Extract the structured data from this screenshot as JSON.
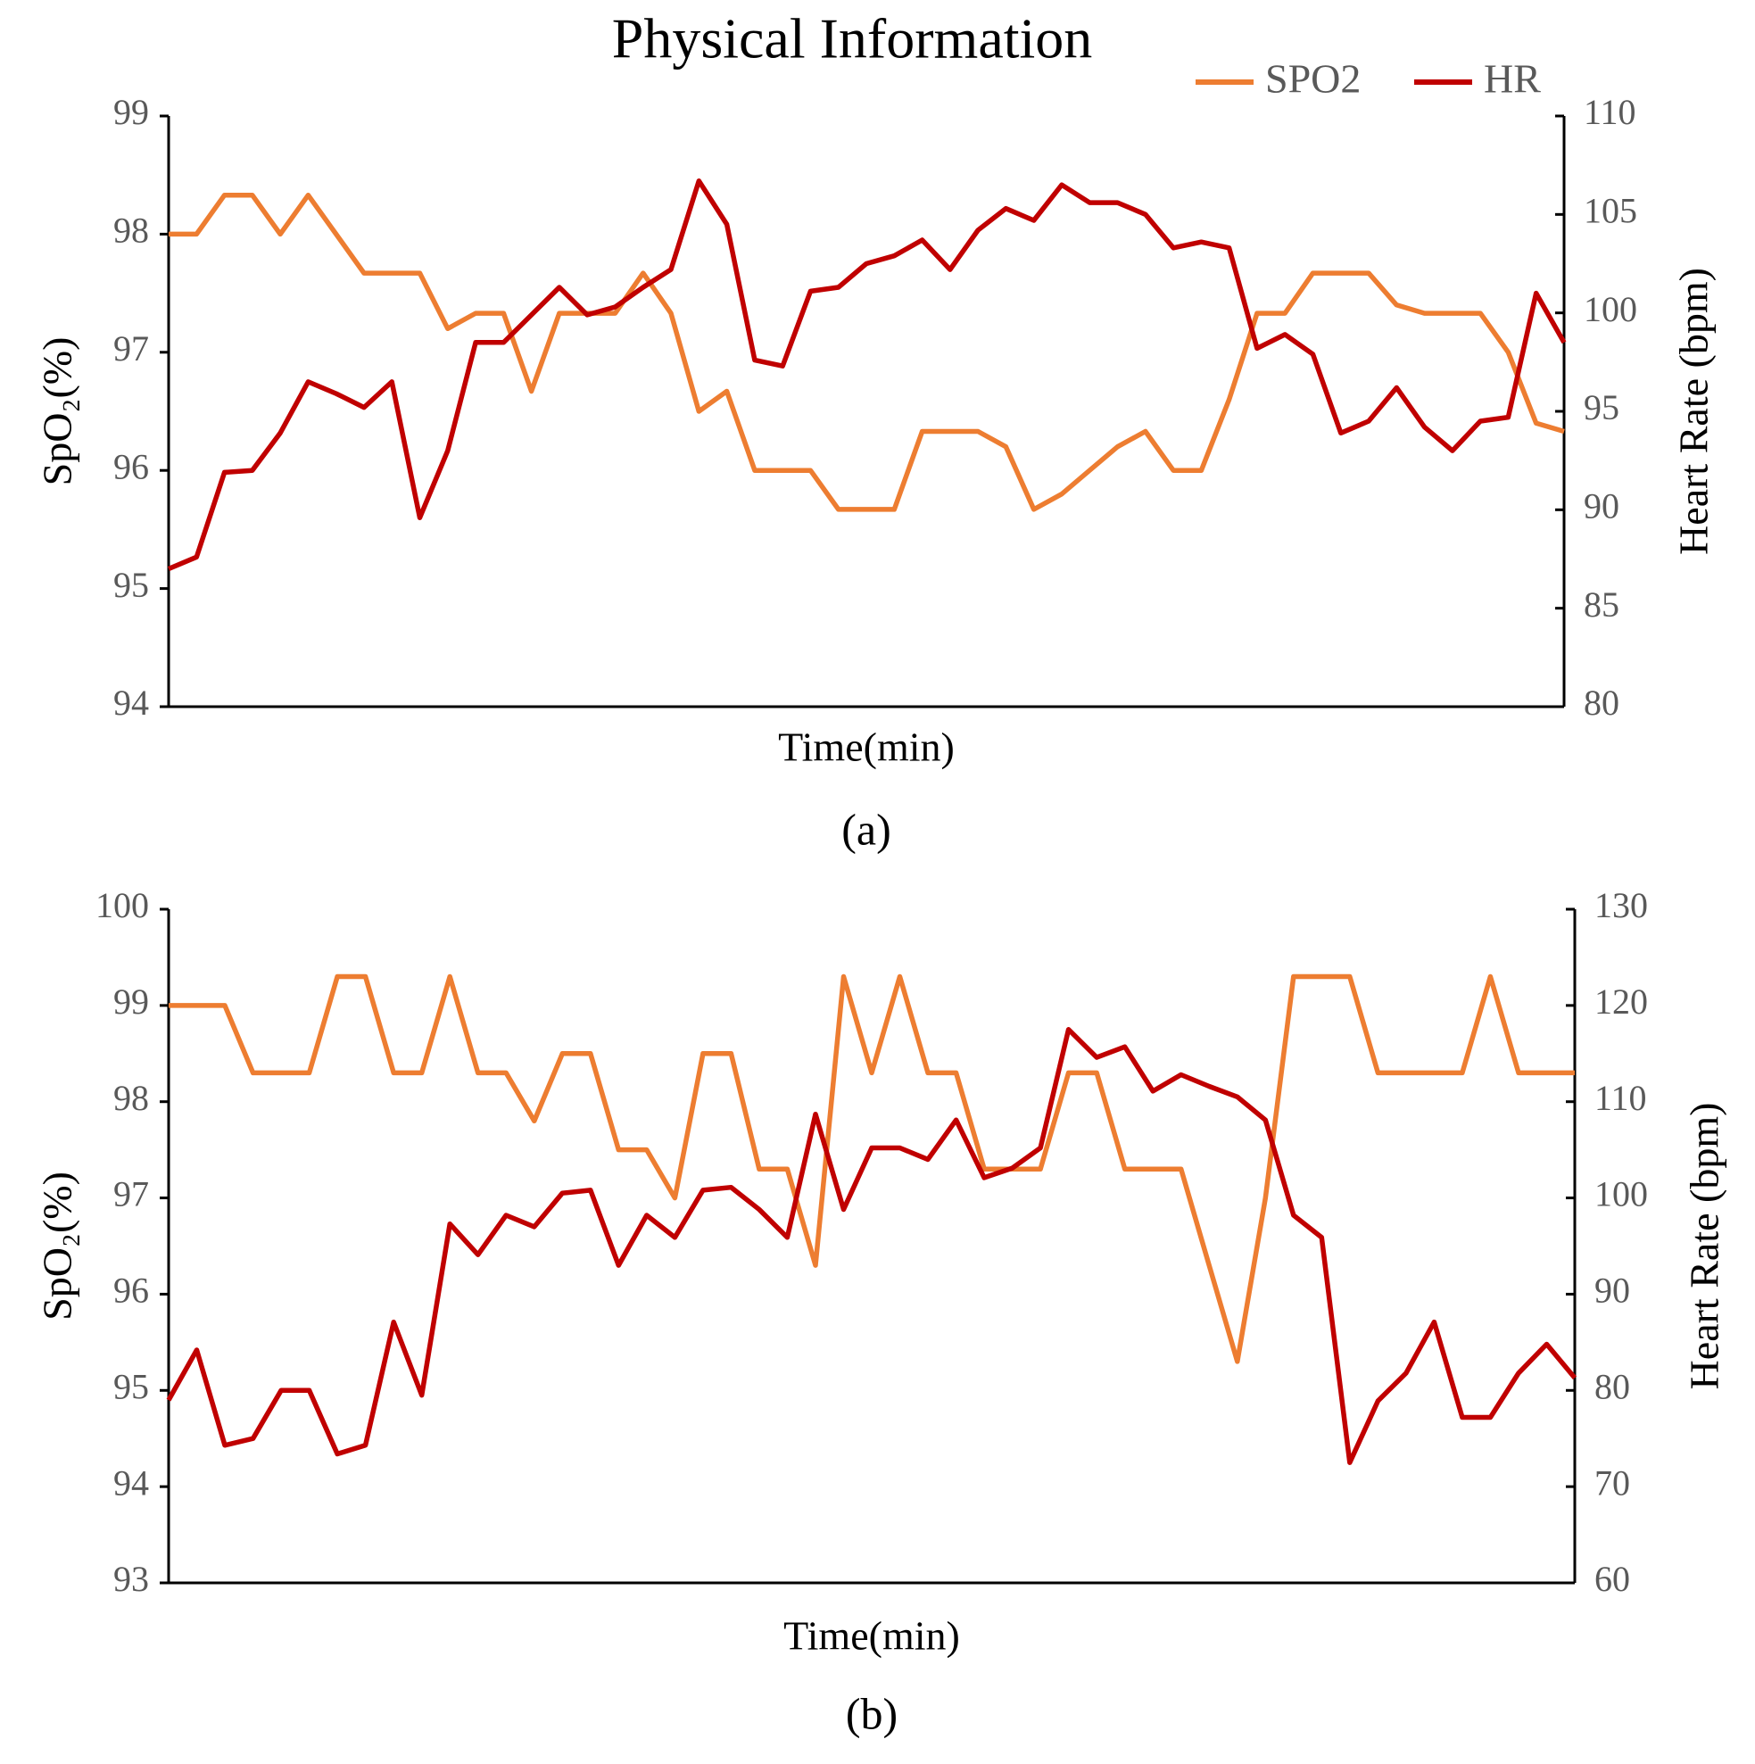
{
  "chart_data": [
    {
      "type": "line",
      "title": "Physical Information",
      "caption": "(a)",
      "xlabel": "Time(min)",
      "ylabel": "SpO₂(%)",
      "y2label": "Heart Rate (bpm)",
      "legend": "upper right",
      "categories": [
        null,
        null,
        null,
        null,
        null,
        null,
        null,
        null,
        null,
        null,
        null,
        null,
        null,
        null,
        null,
        null,
        null,
        null,
        null,
        null,
        null,
        null,
        null,
        null,
        null,
        null,
        null,
        null,
        null,
        null,
        null,
        null,
        null,
        null,
        null,
        null,
        null,
        null,
        null,
        null,
        null,
        null,
        null,
        null,
        null,
        null,
        null,
        null,
        null,
        null,
        null
      ],
      "ylim": [
        94,
        99
      ],
      "yticks": [
        94,
        95,
        96,
        97,
        98,
        99
      ],
      "y2lim": [
        80,
        110
      ],
      "y2ticks": [
        80,
        85,
        90,
        95,
        100,
        105,
        110
      ],
      "series": [
        {
          "name": "SPO2",
          "color": "#ed7d31",
          "values": [
            98,
            98,
            98.33,
            98.33,
            98,
            98.33,
            98,
            97.67,
            97.67,
            97.67,
            97.2,
            97.33,
            97.33,
            96.67,
            97.33,
            97.33,
            97.33,
            97.67,
            97.33,
            96.5,
            96.67,
            96,
            96,
            96,
            95.67,
            95.67,
            95.67,
            96.33,
            96.33,
            96.33,
            96.2,
            95.67,
            95.8,
            96,
            96.2,
            96.33,
            96,
            96,
            96.6,
            97.33,
            97.33,
            97.67,
            97.67,
            97.67,
            97.4,
            97.33,
            97.33,
            97.33,
            97,
            96.4,
            96.33
          ]
        },
        {
          "name": "HR",
          "color": "#c00000",
          "axis": "y2",
          "values": [
            87,
            87.6,
            91.9,
            92,
            93.9,
            96.5,
            95.9,
            95.2,
            96.5,
            89.6,
            93,
            98.5,
            98.5,
            99.9,
            101.3,
            99.9,
            100.3,
            101.3,
            102.2,
            106.7,
            104.5,
            97.6,
            97.3,
            101.1,
            101.3,
            102.5,
            102.9,
            103.7,
            102.2,
            104.2,
            105.3,
            104.7,
            106.5,
            105.6,
            105.6,
            105,
            103.3,
            103.6,
            103.3,
            98.2,
            98.9,
            97.9,
            93.9,
            94.5,
            96.2,
            94.2,
            93,
            94.5,
            94.7,
            101,
            98.5
          ]
        }
      ]
    },
    {
      "type": "line",
      "caption": "(b)",
      "xlabel": "Time(min)",
      "ylabel": "SpO₂(%)",
      "y2label": "Heart Rate (bpm)",
      "categories": [
        null,
        null,
        null,
        null,
        null,
        null,
        null,
        null,
        null,
        null,
        null,
        null,
        null,
        null,
        null,
        null,
        null,
        null,
        null,
        null,
        null,
        null,
        null,
        null,
        null,
        null,
        null,
        null,
        null,
        null,
        null,
        null,
        null,
        null,
        null,
        null,
        null,
        null,
        null,
        null,
        null,
        null,
        null,
        null,
        null,
        null,
        null,
        null,
        null,
        null,
        null
      ],
      "ylim": [
        93,
        100
      ],
      "yticks": [
        93,
        94,
        95,
        96,
        97,
        98,
        99,
        100
      ],
      "y2lim": [
        60,
        130
      ],
      "y2ticks": [
        60,
        70,
        80,
        90,
        100,
        110,
        120,
        130
      ],
      "series": [
        {
          "color": "#ed7d31",
          "values": [
            99,
            99,
            99,
            98.3,
            98.3,
            98.3,
            99.3,
            99.3,
            98.3,
            98.3,
            99.3,
            98.3,
            98.3,
            97.8,
            98.5,
            98.5,
            97.5,
            97.5,
            97,
            98.5,
            98.5,
            97.3,
            97.3,
            96.3,
            99.3,
            98.3,
            99.3,
            98.3,
            98.3,
            97.3,
            97.3,
            97.3,
            98.3,
            98.3,
            97.3,
            97.3,
            97.3,
            96.3,
            95.3,
            97,
            99.3,
            99.3,
            99.3,
            98.3,
            98.3,
            98.3,
            98.3,
            99.3,
            98.3,
            98.3,
            98.3
          ]
        },
        {
          "color": "#c00000",
          "axis": "y2",
          "values": [
            79,
            84.2,
            74.3,
            75,
            80,
            80,
            73.4,
            74.3,
            87.1,
            79.5,
            97.3,
            94.1,
            98.2,
            97,
            100.5,
            100.8,
            93,
            98.2,
            95.9,
            100.8,
            101.1,
            98.8,
            95.9,
            108.7,
            98.8,
            105.2,
            105.2,
            104,
            108.1,
            102.1,
            103.1,
            105.2,
            117.5,
            114.6,
            115.7,
            111.1,
            112.8,
            111.6,
            110.5,
            108.1,
            98.2,
            95.9,
            72.5,
            78.9,
            81.8,
            87.1,
            77.2,
            77.2,
            81.8,
            84.8,
            81.3
          ]
        }
      ]
    }
  ]
}
